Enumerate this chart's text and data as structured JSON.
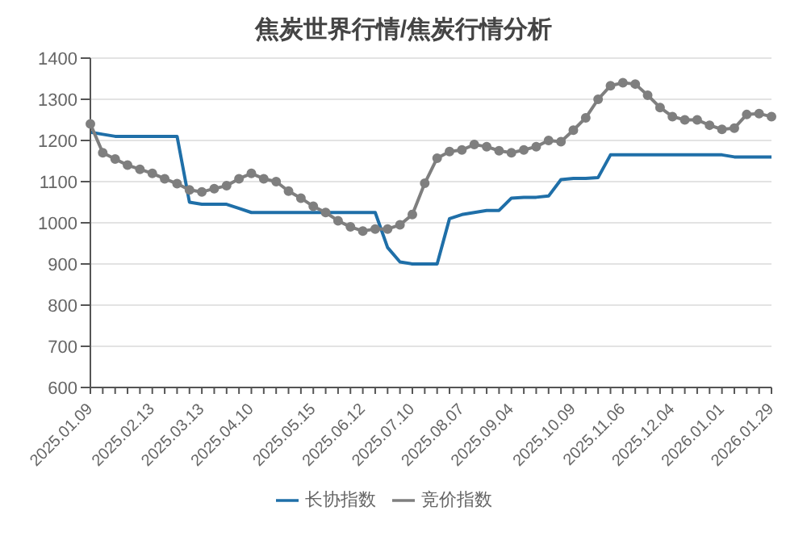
{
  "chart_data": {
    "type": "line",
    "title": "焦炭世界行情/焦炭行情分析",
    "categories": [
      "2025.01.09",
      null,
      null,
      null,
      null,
      "2025.02.13",
      null,
      null,
      null,
      "2025.03.13",
      null,
      null,
      null,
      "2025.04.10",
      null,
      null,
      null,
      null,
      "2025.05.15",
      null,
      null,
      null,
      "2025.06.12",
      null,
      null,
      null,
      "2025.07.10",
      null,
      null,
      null,
      "2025.08.07",
      null,
      null,
      null,
      "2025.09.04",
      null,
      null,
      null,
      null,
      "2025.10.09",
      null,
      null,
      null,
      "2025.11.06",
      null,
      null,
      null,
      "2025.12.04",
      null,
      null,
      null,
      "2026.01.01",
      null,
      null,
      null,
      "2026.01.29"
    ],
    "series": [
      {
        "name": "长协指数",
        "color": "#1f6fa8",
        "marker": "none",
        "values": [
          1220,
          1215,
          1210,
          1210,
          1210,
          1210,
          1210,
          1210,
          1050,
          1045,
          1045,
          1045,
          1035,
          1025,
          1025,
          1025,
          1025,
          1025,
          1025,
          1025,
          1025,
          1025,
          1025,
          1025,
          940,
          905,
          900,
          900,
          900,
          1010,
          1020,
          1025,
          1030,
          1030,
          1060,
          1062,
          1062,
          1065,
          1105,
          1108,
          1108,
          1110,
          1165,
          1165,
          1165,
          1165,
          1165,
          1165,
          1165,
          1165,
          1165,
          1165,
          1160,
          1160,
          1160,
          1160
        ]
      },
      {
        "name": "竞价指数",
        "color": "#7f7f7f",
        "marker": "circle",
        "values": [
          1240,
          1170,
          1155,
          1140,
          1130,
          1120,
          1107,
          1095,
          1080,
          1075,
          1083,
          1090,
          1107,
          1120,
          1107,
          1100,
          1077,
          1060,
          1040,
          1025,
          1005,
          990,
          980,
          985,
          985,
          995,
          1020,
          1096,
          1157,
          1173,
          1177,
          1190,
          1185,
          1175,
          1170,
          1177,
          1185,
          1200,
          1197,
          1225,
          1255,
          1300,
          1333,
          1340,
          1337,
          1310,
          1280,
          1258,
          1250,
          1250,
          1237,
          1227,
          1230,
          1263,
          1265,
          1258
        ]
      }
    ],
    "ylim": [
      600,
      1400
    ],
    "yticks": [
      600,
      700,
      800,
      900,
      1000,
      1100,
      1200,
      1300,
      1400
    ],
    "grid": "y",
    "legend": "bottom"
  }
}
